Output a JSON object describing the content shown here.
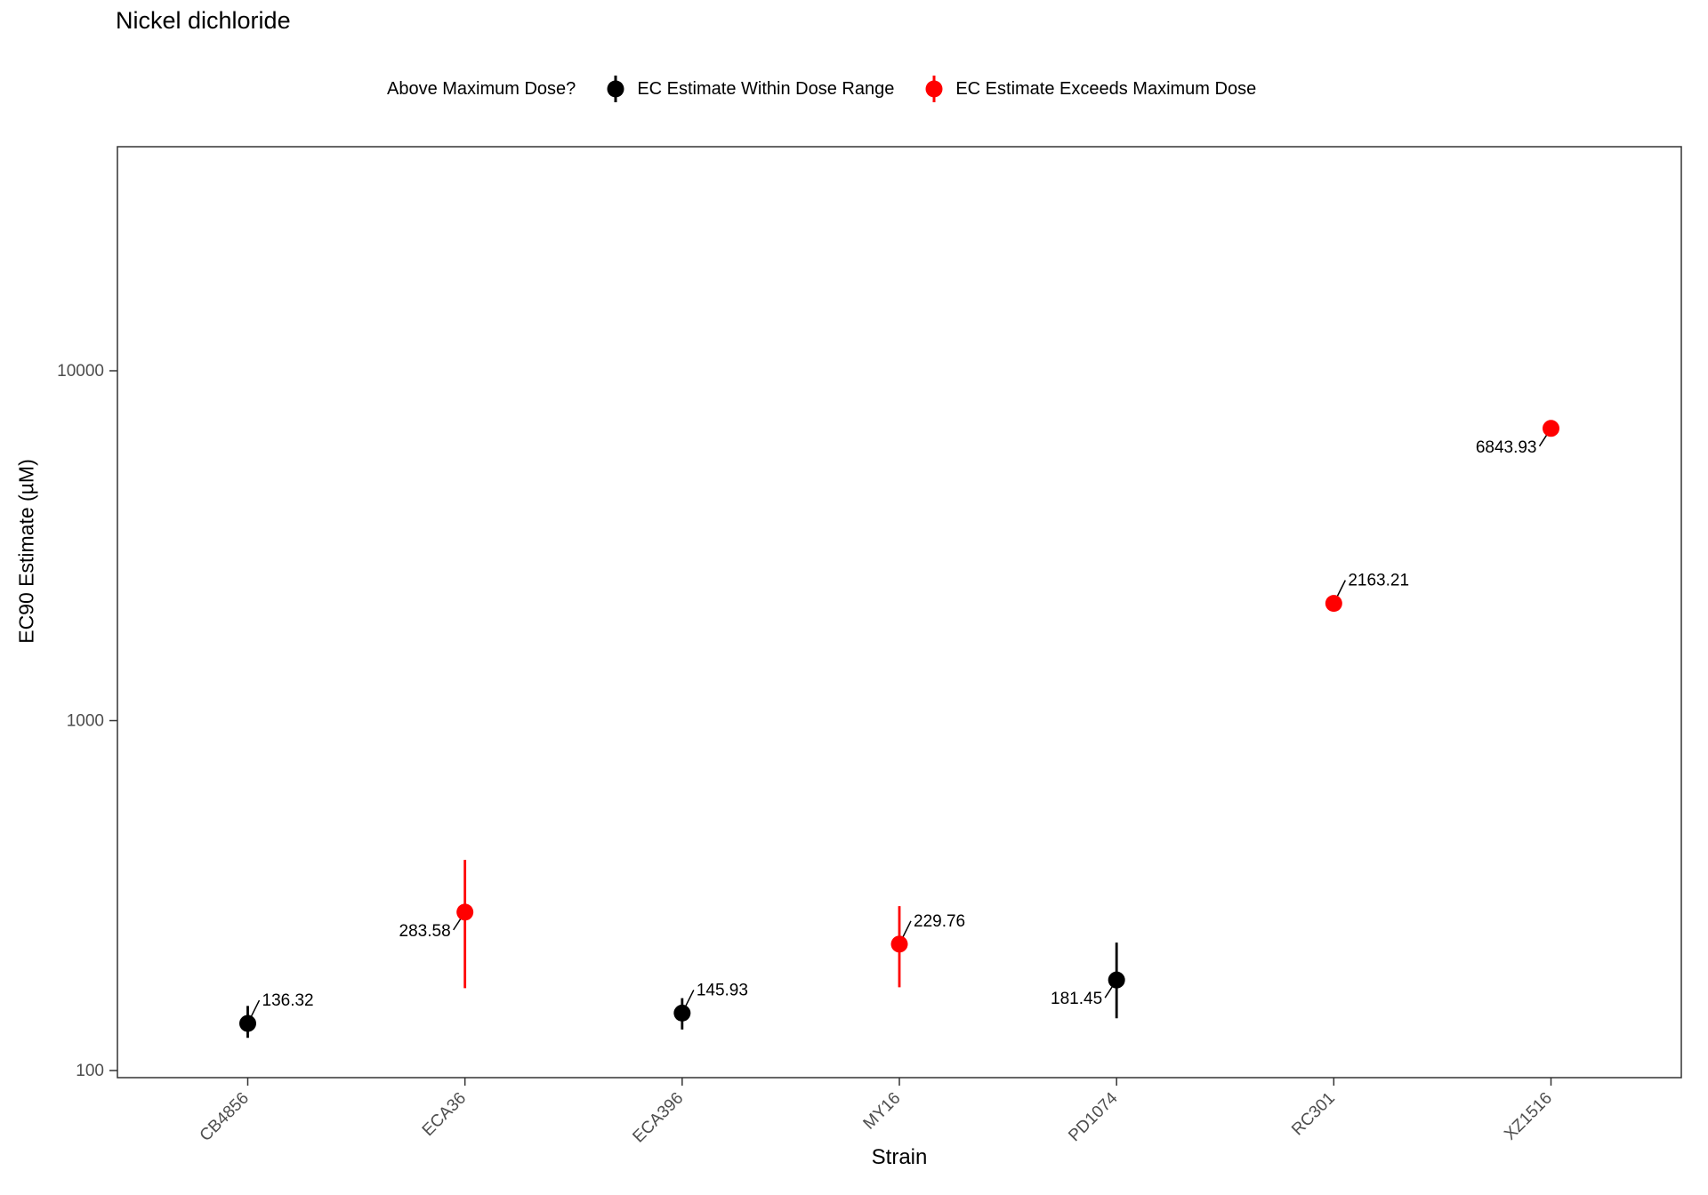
{
  "chart_data": {
    "type": "scatter",
    "title": "Nickel dichloride",
    "xlabel": "Strain",
    "ylabel": "EC90 Estimate (µM)",
    "y_scale": "log10",
    "ylim": [
      95,
      43000
    ],
    "yticks": [
      100,
      1000,
      10000
    ],
    "grid": false,
    "legend": {
      "title": "Above Maximum Dose?",
      "position": "top",
      "entries": [
        {
          "label": "EC Estimate Within Dose Range",
          "color": "#000000",
          "key": "pointrange"
        },
        {
          "label": "EC Estimate Exceeds Maximum Dose",
          "color": "#ff0000",
          "key": "pointrange"
        }
      ]
    },
    "categories": [
      "CB4856",
      "ECA36",
      "ECA396",
      "MY16",
      "PD1074",
      "RC301",
      "XZ1516"
    ],
    "points": [
      {
        "strain": "CB4856",
        "value": 136.32,
        "conf_low": 124,
        "conf_high": 153,
        "exceeds_max": false,
        "label": "136.32",
        "label_side": "right"
      },
      {
        "strain": "ECA36",
        "value": 283.58,
        "conf_low": 172,
        "conf_high": 400,
        "exceeds_max": true,
        "label": "283.58",
        "label_side": "left"
      },
      {
        "strain": "ECA396",
        "value": 145.93,
        "conf_low": 131,
        "conf_high": 161,
        "exceeds_max": false,
        "label": "145.93",
        "label_side": "right"
      },
      {
        "strain": "MY16",
        "value": 229.76,
        "conf_low": 173,
        "conf_high": 295,
        "exceeds_max": true,
        "label": "229.76",
        "label_side": "right"
      },
      {
        "strain": "PD1074",
        "value": 181.45,
        "conf_low": 141,
        "conf_high": 232,
        "exceeds_max": false,
        "label": "181.45",
        "label_side": "left"
      },
      {
        "strain": "RC301",
        "value": 2163.21,
        "conf_low": 2090,
        "conf_high": 2245,
        "exceeds_max": true,
        "label": "2163.21",
        "label_side": "right"
      },
      {
        "strain": "XZ1516",
        "value": 6843.93,
        "conf_low": 6640,
        "conf_high": 7060,
        "exceeds_max": true,
        "label": "6843.93",
        "label_side": "left"
      }
    ],
    "panel": {
      "border_color": "#333333",
      "background": "#ffffff"
    }
  }
}
